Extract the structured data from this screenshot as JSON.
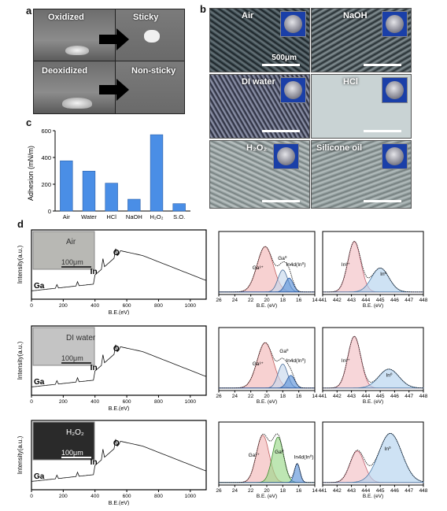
{
  "panel_labels": {
    "a": "a",
    "b": "b",
    "c": "c",
    "d": "d"
  },
  "panel_a": {
    "oxidized": "Oxidized",
    "sticky": "Sticky",
    "deoxidized": "Deoxidized",
    "non_sticky": "Non-sticky"
  },
  "panel_b": {
    "conditions": [
      "Air",
      "NaOH",
      "DI water",
      "HCl",
      "H₂O₂",
      "Silicone oil"
    ],
    "scale_bar": "500μm"
  },
  "chart_data": [
    {
      "type": "bar",
      "title": "",
      "categories": [
        "Air",
        "Water",
        "HCl",
        "NaOH",
        "H₂O₂",
        "S.O."
      ],
      "values": [
        375,
        298,
        208,
        88,
        570,
        55
      ],
      "xlabel": "",
      "ylabel": "Adhesion (mN/m)",
      "ylim": [
        0,
        600
      ],
      "yticks": [
        0,
        200,
        400,
        600
      ],
      "color": "#4a8ee6"
    },
    {
      "type": "line",
      "panel": "d-survey",
      "rows": [
        {
          "inset": "Air",
          "scale": "100μm",
          "peaks": [
            "Ga",
            "In",
            "O"
          ]
        },
        {
          "inset": "DI water",
          "scale": "100μm",
          "peaks": [
            "Ga",
            "In",
            "O"
          ]
        },
        {
          "inset": "H₂O₂",
          "scale": "100μm",
          "peaks": [
            "Ga",
            "In",
            "O"
          ]
        }
      ],
      "xlabel": "B.E.(eV)",
      "ylabel": "Intensity(a.u.)",
      "xlim": [
        0,
        1100
      ],
      "xticks": [
        0,
        200,
        400,
        600,
        800,
        1000
      ]
    },
    {
      "type": "line",
      "panel": "d-Ga3d",
      "xlabel": "B.E. (eV)",
      "xlim": [
        26,
        14
      ],
      "xticks": [
        26,
        24,
        22,
        20,
        18,
        16,
        14
      ],
      "peak_labels": [
        "Ga³⁺",
        "Ga⁰",
        "In4d(In⁰)"
      ]
    },
    {
      "type": "line",
      "panel": "d-In3d",
      "xlabel": "B.E. (eV)",
      "xlim": [
        441,
        448
      ],
      "xticks": [
        441,
        442,
        443,
        444,
        445,
        446,
        447,
        448
      ],
      "peak_labels": [
        "In³⁺",
        "In⁰"
      ]
    }
  ],
  "colors": {
    "bar": "#4a8ee6",
    "ga3": "#f2b8b8",
    "ga0": "#9bd88a",
    "in4d": "#5e93d8",
    "in3": "#f3c0c4",
    "in0": "#b4d3ee"
  }
}
